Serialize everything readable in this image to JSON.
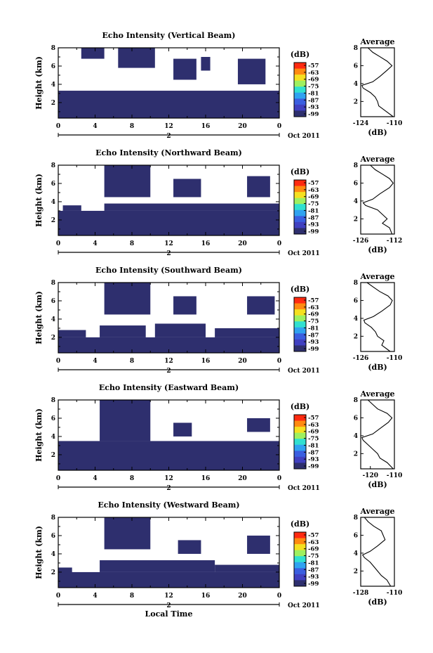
{
  "chart_data": [
    {
      "type": "heatmap",
      "title": "Echo Intensity (Vertical Beam)",
      "ylabel": "Height (km)",
      "y_ticks": [
        "2",
        "4",
        "6",
        "8"
      ],
      "ylim": [
        0.3,
        8.0
      ],
      "x_ticks": [
        "0",
        "4",
        "8",
        "12",
        "16",
        "20",
        "0"
      ],
      "xlim": [
        0,
        24
      ],
      "date_tick": "2",
      "date_label": "Oct 2011",
      "colorbar_unit": "(dB)",
      "colorbar_ticks": [
        "-57",
        "-63",
        "-69",
        "-75",
        "-81",
        "-87",
        "-93",
        "-99"
      ],
      "clouds": [
        {
          "x": [
            0.0,
            24.0
          ],
          "y": [
            0.3,
            3.3
          ]
        },
        {
          "x": [
            2.5,
            5.0
          ],
          "y": [
            6.8,
            8.0
          ]
        },
        {
          "x": [
            6.5,
            10.5
          ],
          "y": [
            5.8,
            8.0
          ]
        },
        {
          "x": [
            12.5,
            15.0
          ],
          "y": [
            4.5,
            6.8
          ]
        },
        {
          "x": [
            15.5,
            16.5
          ],
          "y": [
            5.5,
            7.0
          ]
        },
        {
          "x": [
            19.5,
            22.5
          ],
          "y": [
            4.0,
            6.8
          ]
        }
      ],
      "avg_panel": {
        "title": "Average",
        "xlabel": "(dB)",
        "x_ticks": [
          "-124",
          "-110"
        ],
        "xlim": [
          -124,
          -110
        ],
        "y_ticks": [
          "2",
          "4",
          "6",
          "8"
        ],
        "ylim": [
          0.3,
          8.0
        ],
        "profile": [
          [
            0.3,
            -110.5
          ],
          [
            1.0,
            -114
          ],
          [
            1.5,
            -116.5
          ],
          [
            2.0,
            -117
          ],
          [
            2.5,
            -118
          ],
          [
            3.0,
            -120
          ],
          [
            3.5,
            -123
          ],
          [
            3.8,
            -123.5
          ],
          [
            4.2,
            -119
          ],
          [
            4.8,
            -116
          ],
          [
            5.5,
            -113
          ],
          [
            6.0,
            -111
          ],
          [
            6.5,
            -113
          ],
          [
            7.0,
            -116
          ],
          [
            7.5,
            -119
          ],
          [
            8.0,
            -121
          ]
        ]
      }
    },
    {
      "type": "heatmap",
      "title": "Echo Intensity (Northward Beam)",
      "ylabel": "Height (km)",
      "y_ticks": [
        "2",
        "4",
        "6",
        "8"
      ],
      "ylim": [
        0.3,
        8.0
      ],
      "x_ticks": [
        "0",
        "4",
        "8",
        "12",
        "16",
        "20",
        "0"
      ],
      "xlim": [
        0,
        24
      ],
      "date_tick": "2",
      "date_label": "Oct 2011",
      "colorbar_unit": "(dB)",
      "colorbar_ticks": [
        "-57",
        "-63",
        "-69",
        "-75",
        "-81",
        "-87",
        "-93",
        "-99"
      ],
      "clouds": [
        {
          "x": [
            0.0,
            24.0
          ],
          "y": [
            0.3,
            3.0
          ]
        },
        {
          "x": [
            0.5,
            2.5
          ],
          "y": [
            3.0,
            3.6
          ]
        },
        {
          "x": [
            5.0,
            24.0
          ],
          "y": [
            3.0,
            3.8
          ]
        },
        {
          "x": [
            5.0,
            10.0
          ],
          "y": [
            4.5,
            8.0
          ]
        },
        {
          "x": [
            12.5,
            15.5
          ],
          "y": [
            4.5,
            6.5
          ]
        },
        {
          "x": [
            20.5,
            23.0
          ],
          "y": [
            4.5,
            6.8
          ]
        }
      ],
      "avg_panel": {
        "title": "Average",
        "xlabel": "(dB)",
        "x_ticks": [
          "-126",
          "-112"
        ],
        "xlim": [
          -126,
          -112
        ],
        "y_ticks": [
          "2",
          "4",
          "6",
          "8"
        ],
        "ylim": [
          0.3,
          8.0
        ],
        "profile": [
          [
            0.3,
            -113
          ],
          [
            1.0,
            -114
          ],
          [
            1.5,
            -117
          ],
          [
            2.0,
            -115
          ],
          [
            2.5,
            -117
          ],
          [
            3.0,
            -119
          ],
          [
            3.5,
            -124
          ],
          [
            3.8,
            -125
          ],
          [
            4.2,
            -121
          ],
          [
            4.8,
            -118
          ],
          [
            5.5,
            -114
          ],
          [
            6.0,
            -112.5
          ],
          [
            6.5,
            -114
          ],
          [
            7.0,
            -117
          ],
          [
            7.5,
            -120
          ],
          [
            8.0,
            -122
          ]
        ]
      }
    },
    {
      "type": "heatmap",
      "title": "Echo Intensity (Southward Beam)",
      "ylabel": "Height (km)",
      "y_ticks": [
        "2",
        "4",
        "6",
        "8"
      ],
      "ylim": [
        0.3,
        8.0
      ],
      "x_ticks": [
        "0",
        "4",
        "8",
        "12",
        "16",
        "20",
        "0"
      ],
      "xlim": [
        0,
        24
      ],
      "date_tick": "2",
      "date_label": "Oct 2011",
      "colorbar_unit": "(dB)",
      "colorbar_ticks": [
        "-57",
        "-63",
        "-69",
        "-75",
        "-81",
        "-87",
        "-93",
        "-99"
      ],
      "clouds": [
        {
          "x": [
            0.0,
            24.0
          ],
          "y": [
            0.3,
            2.0
          ]
        },
        {
          "x": [
            0.0,
            3.0
          ],
          "y": [
            2.0,
            2.8
          ]
        },
        {
          "x": [
            4.5,
            9.5
          ],
          "y": [
            2.0,
            3.3
          ]
        },
        {
          "x": [
            10.5,
            16.0
          ],
          "y": [
            2.0,
            3.5
          ]
        },
        {
          "x": [
            17.0,
            24.0
          ],
          "y": [
            2.0,
            3.0
          ]
        },
        {
          "x": [
            5.0,
            10.0
          ],
          "y": [
            4.5,
            8.0
          ]
        },
        {
          "x": [
            12.5,
            15.0
          ],
          "y": [
            4.5,
            6.5
          ]
        },
        {
          "x": [
            20.5,
            23.5
          ],
          "y": [
            4.5,
            6.5
          ]
        }
      ],
      "avg_panel": {
        "title": "Average",
        "xlabel": "(dB)",
        "x_ticks": [
          "-126",
          "-110"
        ],
        "xlim": [
          -126,
          -110
        ],
        "y_ticks": [
          "2",
          "4",
          "6",
          "8"
        ],
        "ylim": [
          0.3,
          8.0
        ],
        "profile": [
          [
            0.3,
            -112
          ],
          [
            1.0,
            -116
          ],
          [
            1.5,
            -115
          ],
          [
            2.0,
            -118
          ],
          [
            2.5,
            -119
          ],
          [
            3.0,
            -121
          ],
          [
            3.5,
            -124
          ],
          [
            3.8,
            -124.5
          ],
          [
            4.2,
            -120
          ],
          [
            4.8,
            -116
          ],
          [
            5.5,
            -112
          ],
          [
            6.0,
            -111
          ],
          [
            6.5,
            -113
          ],
          [
            7.0,
            -117
          ],
          [
            7.5,
            -120
          ],
          [
            8.0,
            -123
          ]
        ]
      }
    },
    {
      "type": "heatmap",
      "title": "Echo Intensity (Eastward Beam)",
      "ylabel": "Height (km)",
      "y_ticks": [
        "2",
        "4",
        "6",
        "8"
      ],
      "ylim": [
        0.3,
        8.0
      ],
      "x_ticks": [
        "0",
        "4",
        "8",
        "12",
        "16",
        "20",
        "0"
      ],
      "xlim": [
        0,
        24
      ],
      "date_tick": "2",
      "date_label": "Oct 2011",
      "colorbar_unit": "(dB)",
      "colorbar_ticks": [
        "-57",
        "-63",
        "-69",
        "-75",
        "-81",
        "-87",
        "-93",
        "-99"
      ],
      "clouds": [
        {
          "x": [
            0.0,
            24.0
          ],
          "y": [
            0.3,
            3.5
          ]
        },
        {
          "x": [
            4.5,
            10.0
          ],
          "y": [
            3.5,
            8.0
          ]
        },
        {
          "x": [
            12.5,
            14.5
          ],
          "y": [
            4.0,
            5.5
          ]
        },
        {
          "x": [
            20.5,
            23.0
          ],
          "y": [
            4.5,
            6.0
          ]
        }
      ],
      "avg_panel": {
        "title": "Average",
        "xlabel": "(dB)",
        "x_ticks": [
          "-120",
          "-110"
        ],
        "xlim": [
          -124,
          -110
        ],
        "y_ticks": [
          "2",
          "4",
          "6",
          "8"
        ],
        "ylim": [
          0.3,
          8.0
        ],
        "profile": [
          [
            0.3,
            -110.5
          ],
          [
            1.0,
            -113
          ],
          [
            1.5,
            -116
          ],
          [
            2.0,
            -117
          ],
          [
            2.5,
            -119
          ],
          [
            3.0,
            -121
          ],
          [
            3.5,
            -123
          ],
          [
            3.8,
            -123.5
          ],
          [
            4.2,
            -119
          ],
          [
            4.8,
            -116
          ],
          [
            5.5,
            -112.5
          ],
          [
            6.0,
            -111
          ],
          [
            6.5,
            -113
          ],
          [
            7.0,
            -117
          ],
          [
            7.5,
            -119
          ],
          [
            8.0,
            -121
          ]
        ]
      }
    },
    {
      "type": "heatmap",
      "title": "Echo Intensity (Westward Beam)",
      "ylabel": "Height (km)",
      "y_ticks": [
        "2",
        "4",
        "6",
        "8"
      ],
      "ylim": [
        0.3,
        8.0
      ],
      "x_ticks": [
        "0",
        "4",
        "8",
        "12",
        "16",
        "20",
        "0"
      ],
      "xlim": [
        0,
        24
      ],
      "date_tick": "2",
      "date_label": "Oct 2011",
      "xlabel": "Local Time",
      "colorbar_unit": "(dB)",
      "colorbar_ticks": [
        "-57",
        "-63",
        "-69",
        "-75",
        "-81",
        "-87",
        "-93",
        "-99"
      ],
      "clouds": [
        {
          "x": [
            1.0,
            24.0
          ],
          "y": [
            0.3,
            2.0
          ]
        },
        {
          "x": [
            4.5,
            17.0
          ],
          "y": [
            2.0,
            3.3
          ]
        },
        {
          "x": [
            17.0,
            24.0
          ],
          "y": [
            2.0,
            2.8
          ]
        },
        {
          "x": [
            0.0,
            1.5
          ],
          "y": [
            0.3,
            2.5
          ]
        },
        {
          "x": [
            5.0,
            10.0
          ],
          "y": [
            4.5,
            8.0
          ]
        },
        {
          "x": [
            13.0,
            15.5
          ],
          "y": [
            4.0,
            5.5
          ]
        },
        {
          "x": [
            20.5,
            23.0
          ],
          "y": [
            4.0,
            6.0
          ]
        }
      ],
      "avg_panel": {
        "title": "Average",
        "xlabel": "(dB)",
        "x_ticks": [
          "-128",
          "-110"
        ],
        "xlim": [
          -128,
          -110
        ],
        "y_ticks": [
          "2",
          "4",
          "6",
          "8"
        ],
        "ylim": [
          0.3,
          8.0
        ],
        "profile": [
          [
            0.3,
            -112
          ],
          [
            1.0,
            -114
          ],
          [
            1.5,
            -117
          ],
          [
            2.0,
            -119
          ],
          [
            2.5,
            -121
          ],
          [
            3.0,
            -123
          ],
          [
            3.5,
            -126
          ],
          [
            3.8,
            -127
          ],
          [
            4.2,
            -123
          ],
          [
            4.8,
            -119
          ],
          [
            5.5,
            -115
          ],
          [
            6.0,
            -116
          ],
          [
            6.5,
            -117
          ],
          [
            7.0,
            -121
          ],
          [
            7.5,
            -124
          ],
          [
            8.0,
            -126
          ]
        ]
      }
    }
  ],
  "colors": {
    "cloud": "#2e2f6e",
    "colorbar": [
      "#ff2a10",
      "#ff8a10",
      "#f5e020",
      "#9ef060",
      "#30e0d0",
      "#2fa2f0",
      "#3a5ee0",
      "#4040c0",
      "#2e2f6e"
    ]
  }
}
